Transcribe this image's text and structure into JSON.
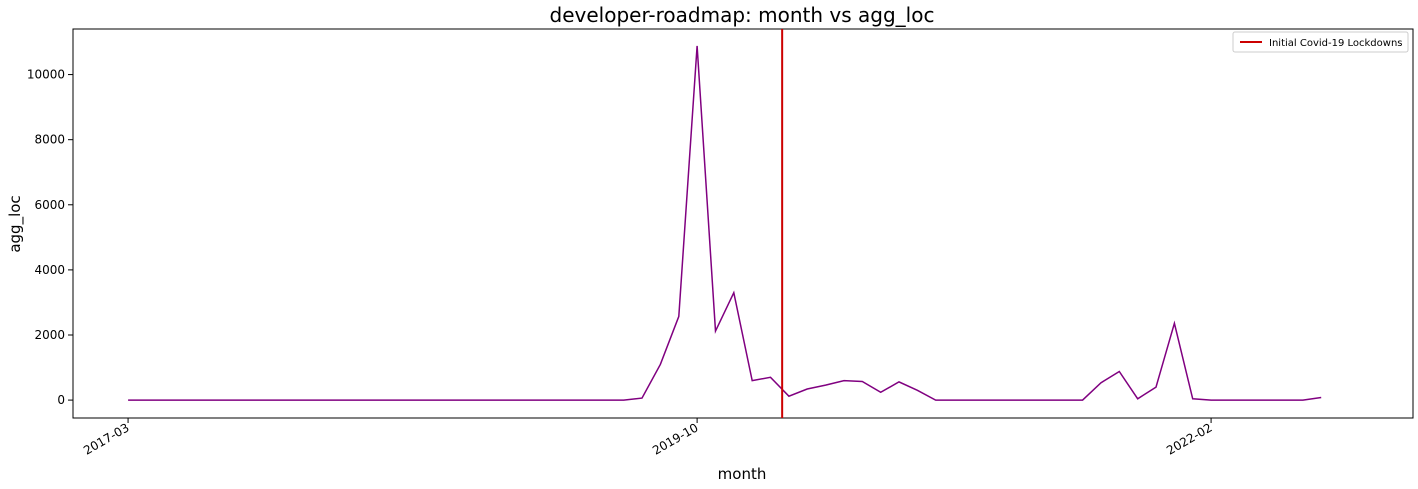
{
  "chart_data": {
    "type": "line",
    "title": "developer-roadmap: month vs agg_loc",
    "xlabel": "month",
    "ylabel": "agg_loc",
    "x_ticks": [
      "2017-03",
      "2019-10",
      "2022-02"
    ],
    "y_ticks": [
      0,
      2000,
      4000,
      6000,
      8000,
      10000
    ],
    "xlim": [
      "2016-12",
      "2023-01"
    ],
    "ylim": [
      -550,
      11400
    ],
    "grid": false,
    "legend_position": "top-right",
    "line_color": "#800080",
    "series": [
      {
        "x": [
          "2017-03",
          "2017-04",
          "2017-05",
          "2017-06",
          "2017-07",
          "2017-08",
          "2017-09",
          "2017-10",
          "2017-11",
          "2017-12",
          "2018-01",
          "2018-02",
          "2018-03",
          "2018-04",
          "2018-05",
          "2018-06",
          "2018-07",
          "2018-08",
          "2018-09",
          "2018-10",
          "2018-11",
          "2018-12",
          "2019-01",
          "2019-02",
          "2019-03",
          "2019-04",
          "2019-05",
          "2019-06",
          "2019-07",
          "2019-08",
          "2019-09",
          "2019-10",
          "2019-11",
          "2019-12",
          "2020-01",
          "2020-02",
          "2020-03",
          "2020-04",
          "2020-05",
          "2020-06",
          "2020-07",
          "2020-08",
          "2020-09",
          "2020-10",
          "2020-11",
          "2020-12",
          "2021-01",
          "2021-02",
          "2021-03",
          "2021-04",
          "2021-05",
          "2021-06",
          "2021-07",
          "2021-08",
          "2021-09",
          "2021-10",
          "2021-11",
          "2021-12",
          "2022-01",
          "2022-02",
          "2022-03",
          "2022-04",
          "2022-05",
          "2022-06",
          "2022-07",
          "2022-08"
        ],
        "values": [
          0,
          0,
          0,
          0,
          0,
          0,
          0,
          0,
          0,
          0,
          0,
          0,
          0,
          0,
          0,
          0,
          0,
          0,
          0,
          0,
          0,
          0,
          0,
          0,
          0,
          0,
          0,
          0,
          60,
          1100,
          2570,
          10880,
          2120,
          3300,
          600,
          700,
          120,
          340,
          460,
          600,
          570,
          240,
          560,
          300,
          0,
          0,
          0,
          0,
          0,
          0,
          0,
          0,
          0,
          530,
          880,
          40,
          400,
          2360,
          40,
          0,
          0,
          0,
          0,
          0,
          0,
          80
        ]
      }
    ],
    "vlines": [
      {
        "x": "2020-02-20",
        "label": "Initial Covid-19 Lockdowns",
        "color": "#cc0000"
      }
    ]
  }
}
